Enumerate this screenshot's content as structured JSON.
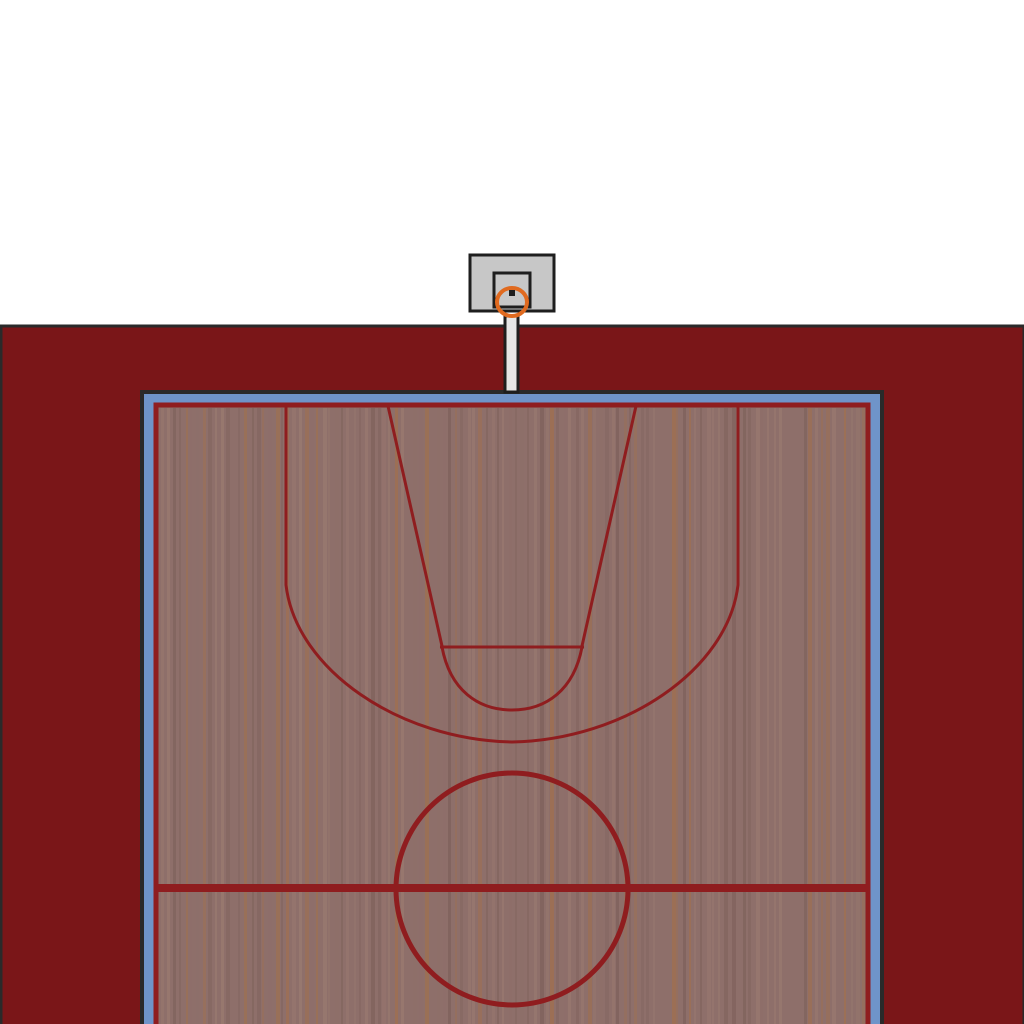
{
  "scene": {
    "type": "pixel-art-basketball-half-court",
    "view": "top-down",
    "colors": {
      "sky": "#ffffff",
      "surround": "#7a1618",
      "outline": "#2a2a2a",
      "border_stripe": "#6f94c9",
      "court_line": "#8f1d1f",
      "floor_base": "#8e6f6a",
      "floor_plank_light": "#9a7a70",
      "floor_plank_dark": "#7f625c",
      "floor_plank_warm": "#a0704f",
      "backboard_fill": "#c7c7c7",
      "backboard_frame": "#1e1e1e",
      "rim": "#e06a1f",
      "pole": "#e6e6e6"
    },
    "objects": {
      "backboard": "backboard",
      "rim": "hoop-rim",
      "pole": "hoop-pole",
      "court": "court-floor",
      "three_point_line": "three-point-arc",
      "key": "free-throw-lane",
      "free_throw_line": "free-throw-line",
      "center_circle": "center-circle",
      "half_court_line": "half-court-line"
    }
  }
}
